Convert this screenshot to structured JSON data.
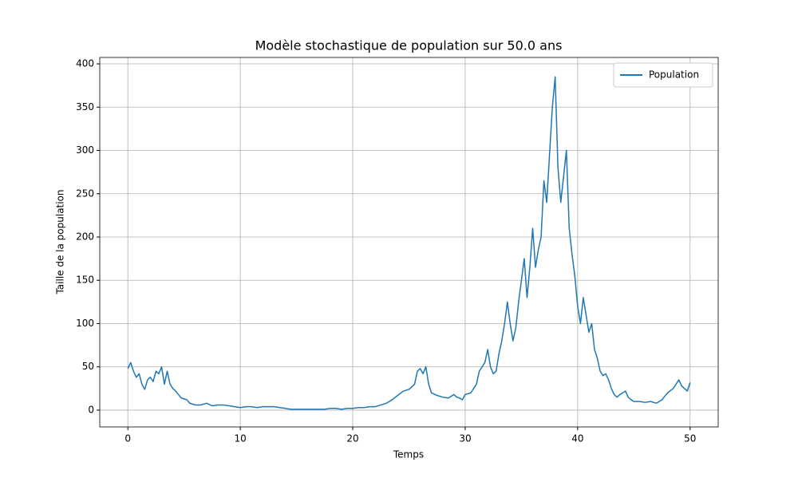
{
  "chart_data": {
    "type": "line",
    "title": "Modèle stochastique de population sur 50.0 ans",
    "x_label": "Temps",
    "y_label": "Taille de la population",
    "x": [
      0,
      0.25,
      0.5,
      0.75,
      1,
      1.25,
      1.5,
      1.75,
      2,
      2.25,
      2.5,
      2.75,
      3,
      3.25,
      3.5,
      3.75,
      4,
      4.25,
      4.5,
      4.75,
      5,
      5.25,
      5.5,
      5.75,
      6,
      6.5,
      7,
      7.5,
      8,
      8.5,
      9,
      9.5,
      10,
      10.5,
      11,
      11.5,
      12,
      12.5,
      13,
      13.5,
      14,
      14.5,
      15,
      15.5,
      16,
      16.5,
      17,
      17.5,
      18,
      18.5,
      19,
      19.5,
      20,
      20.5,
      21,
      21.5,
      22,
      22.5,
      23,
      23.5,
      24,
      24.5,
      25,
      25.5,
      25.75,
      26,
      26.25,
      26.5,
      26.75,
      27,
      27.5,
      28,
      28.5,
      29,
      29.25,
      29.5,
      29.75,
      30,
      30.5,
      31,
      31.25,
      31.5,
      31.75,
      32,
      32.25,
      32.5,
      32.75,
      33,
      33.25,
      33.5,
      33.75,
      34,
      34.25,
      34.5,
      34.75,
      35,
      35.25,
      35.5,
      35.75,
      36,
      36.25,
      36.5,
      36.75,
      37,
      37.25,
      37.5,
      37.75,
      38,
      38.25,
      38.5,
      38.75,
      39,
      39.25,
      39.5,
      39.75,
      40,
      40.25,
      40.5,
      40.75,
      41,
      41.25,
      41.5,
      41.75,
      42,
      42.25,
      42.5,
      42.75,
      43,
      43.25,
      43.5,
      43.75,
      44,
      44.25,
      44.5,
      44.75,
      45,
      45.5,
      46,
      46.5,
      47,
      47.5,
      48,
      48.5,
      49,
      49.25,
      49.5,
      49.75,
      50
    ],
    "series": [
      {
        "name": "Population",
        "color": "#1f77b4",
        "values": [
          48,
          55,
          45,
          38,
          42,
          30,
          24,
          35,
          38,
          33,
          45,
          42,
          50,
          30,
          45,
          30,
          25,
          22,
          18,
          14,
          13,
          12,
          8,
          7,
          6,
          6,
          8,
          5,
          6,
          6,
          5,
          4,
          3,
          4,
          4,
          3,
          4,
          4,
          4,
          3,
          2,
          1,
          1,
          1,
          1,
          1,
          1,
          1,
          2,
          2,
          1,
          2,
          2,
          3,
          3,
          4,
          4,
          6,
          8,
          12,
          17,
          22,
          24,
          30,
          45,
          48,
          42,
          50,
          30,
          20,
          17,
          15,
          14,
          18,
          15,
          14,
          12,
          18,
          20,
          30,
          45,
          50,
          55,
          70,
          50,
          42,
          45,
          65,
          80,
          100,
          125,
          100,
          80,
          95,
          125,
          150,
          175,
          130,
          165,
          210,
          165,
          185,
          200,
          265,
          240,
          295,
          350,
          385,
          280,
          240,
          270,
          300,
          210,
          180,
          155,
          120,
          100,
          130,
          110,
          90,
          100,
          70,
          60,
          45,
          40,
          42,
          35,
          25,
          18,
          15,
          18,
          20,
          22,
          15,
          12,
          10,
          10,
          9,
          10,
          8,
          12,
          20,
          25,
          35,
          28,
          25,
          22,
          32
        ]
      }
    ],
    "xlim": [
      -2.5,
      52.5
    ],
    "ylim": [
      -19.4,
      407.4
    ],
    "xticks": [
      0,
      10,
      20,
      30,
      40,
      50
    ],
    "yticks": [
      0,
      50,
      100,
      150,
      200,
      250,
      300,
      350,
      400
    ],
    "grid": true,
    "legend": "upper right"
  }
}
